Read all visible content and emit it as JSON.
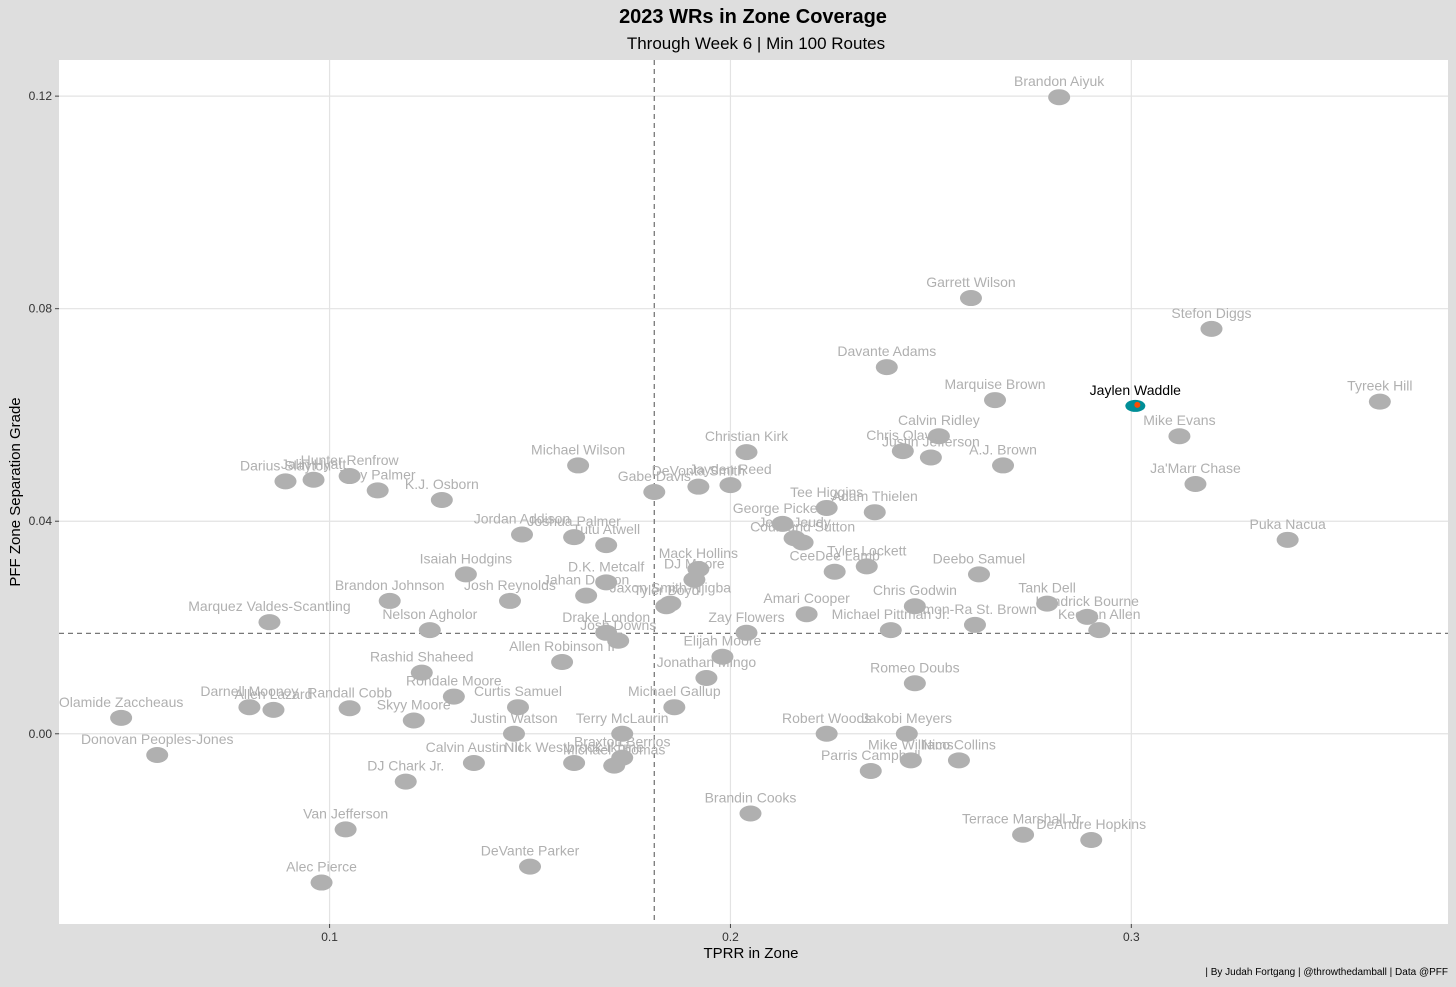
{
  "header": {
    "title": "2023 WRs in Zone Coverage",
    "subtitle": "Through Week 6 | Min 100 Routes"
  },
  "caption": "| By Judah Fortgang | @throwthedamball | Data @PFF",
  "chart_data": {
    "type": "scatter",
    "xlabel": "TPRR in Zone",
    "ylabel": "PFF Zone Separation Grade",
    "xlim": [
      0.0325,
      0.379
    ],
    "ylim": [
      -0.0358,
      0.1268
    ],
    "x_ticks": [
      0.1,
      0.2,
      0.3
    ],
    "y_ticks": [
      0.0,
      0.04,
      0.08,
      0.12
    ],
    "x_tick_labels": [
      "0.1",
      "0.2",
      "0.3"
    ],
    "y_tick_labels": [
      "0.00",
      "0.04",
      "0.08",
      "0.12"
    ],
    "mean_lines": {
      "x": 0.181,
      "y": 0.0189
    },
    "grid": true,
    "highlight": "Jaylen Waddle",
    "colors": {
      "muted": "#b0b0b0",
      "highlight_text": "#000000",
      "highlight_logo": "#008e97",
      "highlight_logo_accent": "#fc4c02"
    },
    "points": [
      {
        "name": "Brandon Aiyuk",
        "x": 0.282,
        "y": 0.1198
      },
      {
        "name": "Garrett Wilson",
        "x": 0.26,
        "y": 0.082
      },
      {
        "name": "Stefon Diggs",
        "x": 0.32,
        "y": 0.0762
      },
      {
        "name": "Davante Adams",
        "x": 0.239,
        "y": 0.069
      },
      {
        "name": "Jaylen Waddle",
        "x": 0.301,
        "y": 0.0617
      },
      {
        "name": "Marquise Brown",
        "x": 0.266,
        "y": 0.0628
      },
      {
        "name": "Tyreek Hill",
        "x": 0.362,
        "y": 0.0625
      },
      {
        "name": "Calvin Ridley",
        "x": 0.252,
        "y": 0.056
      },
      {
        "name": "Chris Olave",
        "x": 0.243,
        "y": 0.0532
      },
      {
        "name": "Mike Evans",
        "x": 0.312,
        "y": 0.056
      },
      {
        "name": "Justin Jefferson",
        "x": 0.25,
        "y": 0.052
      },
      {
        "name": "Christian Kirk",
        "x": 0.204,
        "y": 0.053
      },
      {
        "name": "Michael Wilson",
        "x": 0.162,
        "y": 0.0505
      },
      {
        "name": "Darius Slayton",
        "x": 0.089,
        "y": 0.0475
      },
      {
        "name": "Hunter Renfrow",
        "x": 0.105,
        "y": 0.0485
      },
      {
        "name": "Jalin Hyatt",
        "x": 0.096,
        "y": 0.0478
      },
      {
        "name": "A.J. Brown",
        "x": 0.268,
        "y": 0.0505
      },
      {
        "name": "Ja'Marr Chase",
        "x": 0.316,
        "y": 0.047
      },
      {
        "name": "Jayden Reed",
        "x": 0.2,
        "y": 0.0468
      },
      {
        "name": "DeVonta Smith",
        "x": 0.192,
        "y": 0.0465
      },
      {
        "name": "Trey Palmer",
        "x": 0.112,
        "y": 0.0458
      },
      {
        "name": "Gabe Davis",
        "x": 0.181,
        "y": 0.0455
      },
      {
        "name": "K.J. Osborn",
        "x": 0.128,
        "y": 0.044
      },
      {
        "name": "Tee Higgins",
        "x": 0.224,
        "y": 0.0425
      },
      {
        "name": "Adam Thielen",
        "x": 0.236,
        "y": 0.0417
      },
      {
        "name": "George Pickens",
        "x": 0.213,
        "y": 0.0395
      },
      {
        "name": "Joshua Palmer",
        "x": 0.161,
        "y": 0.037
      },
      {
        "name": "Jordan Addison",
        "x": 0.148,
        "y": 0.0375
      },
      {
        "name": "Jerry Jeudy",
        "x": 0.216,
        "y": 0.0368
      },
      {
        "name": "Courtland Sutton",
        "x": 0.218,
        "y": 0.036
      },
      {
        "name": "Puka Nacua",
        "x": 0.339,
        "y": 0.0365
      },
      {
        "name": "Tutu Atwell",
        "x": 0.169,
        "y": 0.0355
      },
      {
        "name": "Isaiah Hodgins",
        "x": 0.134,
        "y": 0.03
      },
      {
        "name": "Mack Hollins",
        "x": 0.192,
        "y": 0.031
      },
      {
        "name": "Tyler Lockett",
        "x": 0.234,
        "y": 0.0315
      },
      {
        "name": "Deebo Samuel",
        "x": 0.262,
        "y": 0.03
      },
      {
        "name": "CeeDee Lamb",
        "x": 0.226,
        "y": 0.0305
      },
      {
        "name": "D.K. Metcalf",
        "x": 0.169,
        "y": 0.0285
      },
      {
        "name": "DJ Moore",
        "x": 0.191,
        "y": 0.029
      },
      {
        "name": "Brandon Johnson",
        "x": 0.115,
        "y": 0.025
      },
      {
        "name": "Jahan Dotson",
        "x": 0.164,
        "y": 0.026
      },
      {
        "name": "Jaxon Smith-Njigba",
        "x": 0.185,
        "y": 0.0245
      },
      {
        "name": "Tank Dell",
        "x": 0.279,
        "y": 0.0245
      },
      {
        "name": "Chris Godwin",
        "x": 0.246,
        "y": 0.024
      },
      {
        "name": "Josh Reynolds",
        "x": 0.145,
        "y": 0.025
      },
      {
        "name": "Kendrick Bourne",
        "x": 0.289,
        "y": 0.022
      },
      {
        "name": "Tyler Boyd",
        "x": 0.184,
        "y": 0.024
      },
      {
        "name": "Amari Cooper",
        "x": 0.219,
        "y": 0.0225
      },
      {
        "name": "Marquez Valdes-Scantling",
        "x": 0.085,
        "y": 0.021
      },
      {
        "name": "Amon-Ra St. Brown",
        "x": 0.261,
        "y": 0.0205
      },
      {
        "name": "Keenan Allen",
        "x": 0.292,
        "y": 0.0195
      },
      {
        "name": "Michael Pittman Jr.",
        "x": 0.24,
        "y": 0.0195
      },
      {
        "name": "Drake London",
        "x": 0.169,
        "y": 0.019
      },
      {
        "name": "Zay Flowers",
        "x": 0.204,
        "y": 0.019
      },
      {
        "name": "Nelson Agholor",
        "x": 0.125,
        "y": 0.0195
      },
      {
        "name": "Josh Downs",
        "x": 0.172,
        "y": 0.0175
      },
      {
        "name": "Rashid Shaheed",
        "x": 0.123,
        "y": 0.0115
      },
      {
        "name": "Allen Robinson II",
        "x": 0.158,
        "y": 0.0135
      },
      {
        "name": "Elijah Moore",
        "x": 0.198,
        "y": 0.0145
      },
      {
        "name": "Jonathan Mingo",
        "x": 0.194,
        "y": 0.0105
      },
      {
        "name": "Romeo Doubs",
        "x": 0.246,
        "y": 0.0095
      },
      {
        "name": "Darnell Mooney",
        "x": 0.08,
        "y": 0.005
      },
      {
        "name": "Allen Lazard",
        "x": 0.086,
        "y": 0.0045
      },
      {
        "name": "Rondale Moore",
        "x": 0.131,
        "y": 0.007
      },
      {
        "name": "Curtis Samuel",
        "x": 0.147,
        "y": 0.005
      },
      {
        "name": "Randall Cobb",
        "x": 0.105,
        "y": 0.0048
      },
      {
        "name": "Olamide Zaccheaus",
        "x": 0.048,
        "y": 0.003
      },
      {
        "name": "Skyy Moore",
        "x": 0.121,
        "y": 0.0025
      },
      {
        "name": "Terry McLaurin",
        "x": 0.173,
        "y": 0.0
      },
      {
        "name": "Michael Gallup",
        "x": 0.186,
        "y": 0.005
      },
      {
        "name": "Robert Woods",
        "x": 0.224,
        "y": 0.0
      },
      {
        "name": "Jakobi Meyers",
        "x": 0.244,
        "y": 0.0
      },
      {
        "name": "Justin Watson",
        "x": 0.146,
        "y": 0.0
      },
      {
        "name": "Braxton Berrios",
        "x": 0.173,
        "y": -0.0045
      },
      {
        "name": "Mike Williams",
        "x": 0.245,
        "y": -0.005
      },
      {
        "name": "Nico Collins",
        "x": 0.257,
        "y": -0.005
      },
      {
        "name": "Donovan Peoples-Jones",
        "x": 0.057,
        "y": -0.004
      },
      {
        "name": "Calvin Austin III",
        "x": 0.136,
        "y": -0.0055
      },
      {
        "name": "Nick Westbrook-Ikhine",
        "x": 0.161,
        "y": -0.0055
      },
      {
        "name": "Michael Thomas",
        "x": 0.171,
        "y": -0.006
      },
      {
        "name": "Parris Campbell",
        "x": 0.235,
        "y": -0.007
      },
      {
        "name": "DJ Chark Jr.",
        "x": 0.119,
        "y": -0.009
      },
      {
        "name": "Brandin Cooks",
        "x": 0.205,
        "y": -0.015
      },
      {
        "name": "Terrace Marshall Jr.",
        "x": 0.273,
        "y": -0.019
      },
      {
        "name": "DeAndre Hopkins",
        "x": 0.29,
        "y": -0.02
      },
      {
        "name": "Van Jefferson",
        "x": 0.104,
        "y": -0.018
      },
      {
        "name": "DeVante Parker",
        "x": 0.15,
        "y": -0.025
      },
      {
        "name": "Alec Pierce",
        "x": 0.098,
        "y": -0.028
      }
    ]
  }
}
